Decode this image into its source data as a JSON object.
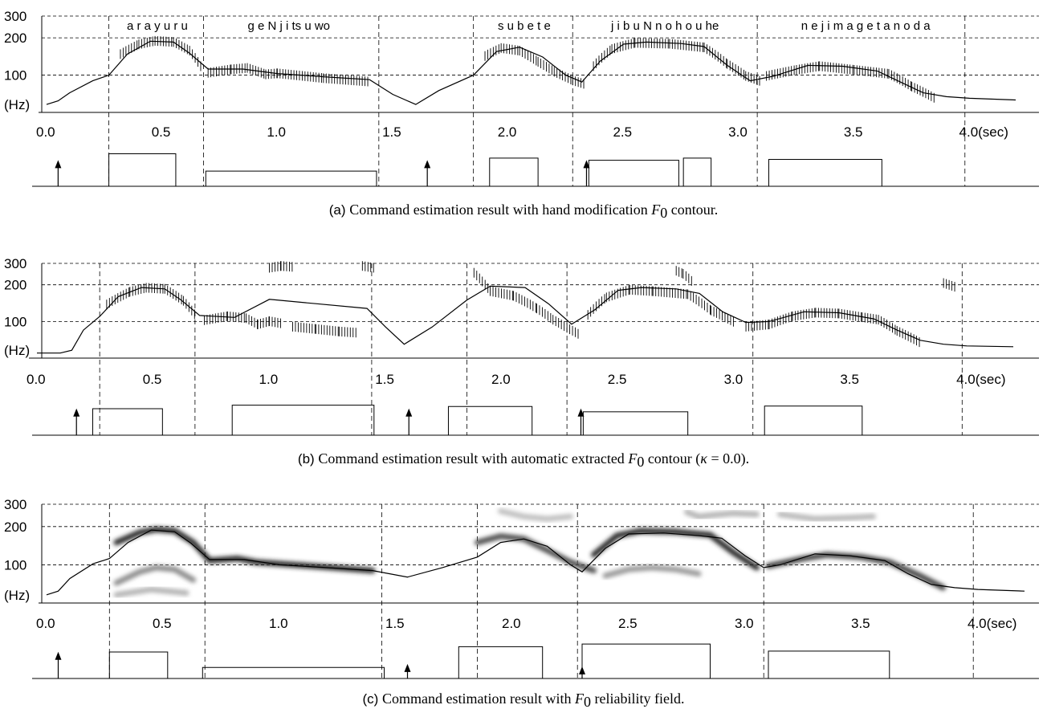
{
  "chart_data": [
    {
      "type": "line",
      "panel": "a",
      "caption": {
        "label": "(a)",
        "text": "Command estimation result with hand modification",
        "math": "F",
        "sub": "0",
        "suffix": "contour."
      },
      "y_axis": {
        "tick_labels": [
          "300",
          "200",
          "100"
        ],
        "unit_label": "(Hz)",
        "scale": "log",
        "ylim": [
          50,
          300
        ]
      },
      "x_axis": {
        "ticks": [
          0.0,
          0.5,
          1.0,
          1.5,
          2.0,
          2.5,
          3.0,
          3.5,
          4.0
        ],
        "tick_labels": [
          "0.0",
          "0.5",
          "1.0",
          "1.5",
          "2.0",
          "2.5",
          "3.0",
          "3.5",
          "4.0(sec)"
        ],
        "xlim": [
          0,
          4.2
        ]
      },
      "phrase_boundaries": [
        0.27,
        0.68,
        1.44,
        1.85,
        2.28,
        3.08,
        3.98
      ],
      "syllables": [
        {
          "text": "a r a y u r u",
          "x": 0.48
        },
        {
          "text": "g e N j i   ts   u   wo",
          "x": 1.05
        },
        {
          "text": "s u b e t e",
          "x": 2.07
        },
        {
          "text": "j i b u N n o   h o u   he",
          "x": 2.68
        },
        {
          "text": "n e j i m a g e t  a n o d a",
          "x": 3.55
        }
      ],
      "observed_f0_segments": [
        {
          "x": [
            0.32,
            0.4,
            0.47,
            0.55,
            0.62,
            0.67
          ],
          "y": [
            150,
            180,
            192,
            188,
            160,
            118
          ]
        },
        {
          "x": [
            0.7,
            0.8,
            0.87,
            0.95,
            1.0,
            1.2,
            1.4
          ],
          "y": [
            106,
            113,
            116,
            103,
            105,
            96,
            90
          ]
        },
        {
          "x": [
            1.9,
            1.97,
            2.05,
            2.13,
            2.2,
            2.28,
            2.34
          ],
          "y": [
            145,
            168,
            160,
            130,
            108,
            92,
            85
          ]
        },
        {
          "x": [
            2.37,
            2.45,
            2.55,
            2.7,
            2.85,
            2.95,
            3.03,
            3.1
          ],
          "y": [
            120,
            165,
            185,
            182,
            170,
            125,
            100,
            90
          ]
        },
        {
          "x": [
            3.12,
            3.25,
            3.35,
            3.5,
            3.65,
            3.75,
            3.85
          ],
          "y": [
            100,
            112,
            120,
            112,
            104,
            82,
            66
          ]
        }
      ],
      "model_f0": {
        "x": [
          0.0,
          0.05,
          0.1,
          0.2,
          0.27,
          0.35,
          0.45,
          0.55,
          0.62,
          0.7,
          0.85,
          1.0,
          1.2,
          1.4,
          1.5,
          1.6,
          1.7,
          1.85,
          1.95,
          2.05,
          2.15,
          2.25,
          2.32,
          2.4,
          2.5,
          2.6,
          2.75,
          2.85,
          2.95,
          3.05,
          3.15,
          3.3,
          3.45,
          3.6,
          3.7,
          3.8,
          3.9,
          4.0,
          4.2
        ],
        "y": [
          58,
          62,
          72,
          90,
          100,
          148,
          188,
          185,
          150,
          112,
          112,
          103,
          97,
          92,
          70,
          58,
          75,
          100,
          155,
          168,
          140,
          100,
          88,
          130,
          178,
          185,
          180,
          170,
          120,
          90,
          98,
          120,
          118,
          108,
          88,
          72,
          67,
          65,
          63
        ]
      },
      "phrase_commands": [
        {
          "time": 0.05,
          "amp": 0.55
        },
        {
          "time": 1.65,
          "amp": 0.55
        },
        {
          "time": 2.34,
          "amp": 0.55
        }
      ],
      "accent_commands": [
        {
          "on": 0.27,
          "off": 0.56,
          "amp": 0.75
        },
        {
          "on": 0.69,
          "off": 1.43,
          "amp": 0.35
        },
        {
          "on": 1.92,
          "off": 2.13,
          "amp": 0.65
        },
        {
          "on": 2.35,
          "off": 2.74,
          "amp": 0.6
        },
        {
          "on": 2.76,
          "off": 2.88,
          "amp": 0.65
        },
        {
          "on": 3.13,
          "off": 3.62,
          "amp": 0.62
        }
      ]
    },
    {
      "type": "line",
      "panel": "b",
      "caption": {
        "label": "(b)",
        "text": "Command estimation result with automatic extracted",
        "math": "F",
        "sub": "0",
        "suffix": "contour (",
        "greek": "κ",
        "eq": " = 0.0)."
      },
      "y_axis": {
        "tick_labels": [
          "300",
          "200",
          "100"
        ],
        "unit_label": "(Hz)",
        "scale": "log",
        "ylim": [
          50,
          300
        ]
      },
      "x_axis": {
        "ticks": [
          0.0,
          0.5,
          1.0,
          1.5,
          2.0,
          2.5,
          3.0,
          3.5,
          4.0
        ],
        "tick_labels": [
          "0.0",
          "0.5",
          "1.0",
          "1.5",
          "2.0",
          "2.5",
          "3.0",
          "3.5",
          "4.0(sec)"
        ],
        "xlim": [
          0,
          4.2
        ]
      },
      "phrase_boundaries": [
        0.27,
        0.68,
        1.44,
        1.85,
        2.28,
        3.08,
        3.98
      ],
      "observed_f0_segments": [
        {
          "x": [
            0.3,
            0.4,
            0.47,
            0.55,
            0.63,
            0.68
          ],
          "y": [
            140,
            178,
            192,
            188,
            150,
            115
          ]
        },
        {
          "x": [
            0.72,
            0.82,
            0.9,
            0.95,
            1.0,
            1.05
          ],
          "y": [
            104,
            112,
            108,
            96,
            102,
            98
          ]
        },
        {
          "x": [
            1.1,
            1.2,
            1.3,
            1.38
          ],
          "y": [
            92,
            88,
            84,
            82
          ]
        },
        {
          "x": [
            1.0,
            1.05,
            1.1
          ],
          "y": [
            280,
            290,
            285
          ]
        },
        {
          "x": [
            1.4,
            1.45
          ],
          "y": [
            290,
            280
          ]
        },
        {
          "x": [
            1.88,
            1.95,
            2.05,
            2.15,
            2.22,
            2.28,
            2.33
          ],
          "y": [
            255,
            180,
            165,
            130,
            105,
            90,
            80
          ]
        },
        {
          "x": [
            2.37,
            2.45,
            2.55,
            2.65,
            2.8,
            2.9,
            3.0
          ],
          "y": [
            115,
            160,
            185,
            180,
            170,
            125,
            100
          ]
        },
        {
          "x": [
            3.05,
            3.15,
            3.25,
            3.35,
            3.45,
            3.55,
            3.62,
            3.7,
            3.8
          ],
          "y": [
            92,
            96,
            112,
            120,
            118,
            110,
            105,
            85,
            68
          ]
        },
        {
          "x": [
            2.75,
            2.78,
            2.82
          ],
          "y": [
            265,
            250,
            215
          ]
        },
        {
          "x": [
            3.9,
            3.95
          ],
          "y": [
            210,
            195
          ]
        }
      ],
      "model_f0": {
        "x": [
          0.0,
          0.1,
          0.15,
          0.2,
          0.27,
          0.35,
          0.45,
          0.55,
          0.62,
          0.7,
          0.85,
          1.0,
          1.2,
          1.42,
          1.5,
          1.58,
          1.7,
          1.85,
          1.95,
          2.1,
          2.2,
          2.3,
          2.4,
          2.5,
          2.6,
          2.75,
          2.85,
          2.95,
          3.05,
          3.15,
          3.3,
          3.45,
          3.6,
          3.7,
          3.8,
          3.9,
          4.0,
          4.2
        ],
        "y": [
          55,
          55,
          58,
          85,
          110,
          160,
          190,
          185,
          150,
          112,
          108,
          152,
          140,
          128,
          90,
          65,
          90,
          150,
          195,
          190,
          140,
          95,
          125,
          180,
          190,
          185,
          170,
          120,
          98,
          100,
          120,
          118,
          105,
          85,
          70,
          65,
          63,
          62
        ]
      },
      "phrase_commands": [
        {
          "time": 0.17,
          "amp": 0.55
        },
        {
          "time": 1.6,
          "amp": 0.55
        },
        {
          "time": 2.34,
          "amp": 0.55
        }
      ],
      "accent_commands": [
        {
          "on": 0.24,
          "off": 0.54,
          "amp": 0.6
        },
        {
          "on": 0.84,
          "off": 1.45,
          "amp": 0.68
        },
        {
          "on": 1.77,
          "off": 2.13,
          "amp": 0.65
        },
        {
          "on": 2.35,
          "off": 2.8,
          "amp": 0.53
        },
        {
          "on": 3.13,
          "off": 3.55,
          "amp": 0.66
        }
      ]
    },
    {
      "type": "line",
      "panel": "c",
      "caption": {
        "label": "(c)",
        "text": "Command estimation result with",
        "math": "F",
        "sub": "0",
        "suffix": "reliability field."
      },
      "y_axis": {
        "tick_labels": [
          "300",
          "200",
          "100"
        ],
        "unit_label": "(Hz)",
        "scale": "log",
        "ylim": [
          50,
          300
        ]
      },
      "x_axis": {
        "ticks": [
          0.0,
          0.5,
          1.0,
          1.5,
          2.0,
          2.5,
          3.0,
          3.5,
          4.0
        ],
        "tick_labels": [
          "0.0",
          "0.5",
          "1.0",
          "1.5",
          "2.0",
          "2.5",
          "3.0",
          "3.5",
          "4.0(sec)"
        ],
        "xlim": [
          0,
          4.2
        ]
      },
      "phrase_boundaries": [
        0.27,
        0.68,
        1.44,
        1.85,
        2.28,
        3.08,
        3.98
      ],
      "reliability_field": [
        {
          "x": [
            0.3,
            0.4,
            0.47,
            0.55,
            0.63,
            0.7,
            0.82,
            0.9,
            1.0,
            1.2,
            1.4
          ],
          "y": [
            150,
            180,
            190,
            185,
            150,
            108,
            112,
            105,
            102,
            96,
            90
          ],
          "strength": 0.85
        },
        {
          "x": [
            0.3,
            0.4,
            0.47,
            0.55,
            0.63
          ],
          "y": [
            72,
            88,
            95,
            92,
            76
          ],
          "strength": 0.45
        },
        {
          "x": [
            0.3,
            0.45,
            0.6
          ],
          "y": [
            58,
            64,
            60
          ],
          "strength": 0.3
        },
        {
          "x": [
            1.85,
            1.95,
            2.05,
            2.15,
            2.25,
            2.35
          ],
          "y": [
            150,
            168,
            160,
            130,
            105,
            90
          ],
          "strength": 0.7
        },
        {
          "x": [
            2.35,
            2.45,
            2.55,
            2.7,
            2.85,
            2.95,
            3.05
          ],
          "y": [
            120,
            170,
            185,
            182,
            172,
            125,
            95
          ],
          "strength": 0.85
        },
        {
          "x": [
            2.4,
            2.5,
            2.6,
            2.7,
            2.8
          ],
          "y": [
            82,
            92,
            95,
            92,
            85
          ],
          "strength": 0.4
        },
        {
          "x": [
            3.1,
            3.25,
            3.35,
            3.5,
            3.62,
            3.75,
            3.85
          ],
          "y": [
            98,
            112,
            120,
            115,
            105,
            82,
            66
          ],
          "strength": 0.75
        },
        {
          "x": [
            2.75,
            2.8,
            2.85,
            2.95,
            3.05
          ],
          "y": [
            260,
            240,
            245,
            255,
            250
          ],
          "strength": 0.3
        },
        {
          "x": [
            3.15,
            3.3,
            3.45,
            3.55
          ],
          "y": [
            250,
            230,
            235,
            240
          ],
          "strength": 0.28
        },
        {
          "x": [
            1.95,
            2.05,
            2.15,
            2.25
          ],
          "y": [
            265,
            240,
            230,
            240
          ],
          "strength": 0.25
        }
      ],
      "model_f0": {
        "x": [
          0.0,
          0.05,
          0.1,
          0.2,
          0.27,
          0.35,
          0.45,
          0.55,
          0.62,
          0.7,
          0.85,
          1.0,
          1.2,
          1.4,
          1.55,
          1.7,
          1.85,
          1.95,
          2.05,
          2.15,
          2.25,
          2.3,
          2.4,
          2.5,
          2.65,
          2.8,
          2.9,
          3.0,
          3.08,
          3.15,
          3.3,
          3.45,
          3.6,
          3.7,
          3.8,
          3.9,
          4.0,
          4.2
        ],
        "y": [
          58,
          62,
          78,
          102,
          112,
          150,
          188,
          182,
          148,
          110,
          110,
          100,
          95,
          90,
          80,
          95,
          115,
          150,
          160,
          140,
          100,
          88,
          135,
          175,
          178,
          170,
          162,
          118,
          95,
          100,
          122,
          118,
          108,
          85,
          70,
          66,
          64,
          62
        ]
      },
      "phrase_commands": [
        {
          "time": 0.05,
          "amp": 0.55
        },
        {
          "time": 1.55,
          "amp": 0.3
        },
        {
          "time": 2.3,
          "amp": 0.25
        }
      ],
      "accent_commands": [
        {
          "on": 0.27,
          "off": 0.52,
          "amp": 0.6
        },
        {
          "on": 0.67,
          "off": 1.45,
          "amp": 0.25
        },
        {
          "on": 1.77,
          "off": 2.13,
          "amp": 0.72
        },
        {
          "on": 2.3,
          "off": 2.85,
          "amp": 0.78
        },
        {
          "on": 3.1,
          "off": 3.62,
          "amp": 0.62
        }
      ]
    }
  ]
}
